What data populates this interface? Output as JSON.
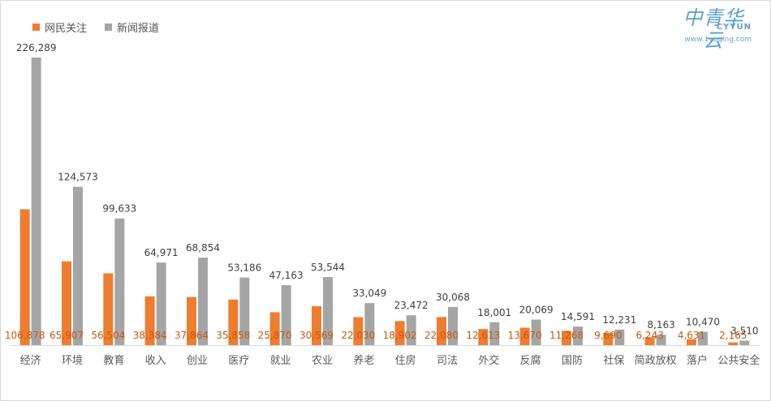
{
  "chart_data": {
    "type": "bar",
    "categories": [
      "经济",
      "环境",
      "教育",
      "收入",
      "创业",
      "医疗",
      "就业",
      "农业",
      "养老",
      "住房",
      "司法",
      "外交",
      "反腐",
      "国防",
      "社保",
      "简政放权",
      "落户",
      "公共安全"
    ],
    "series": [
      {
        "name": "网民关注",
        "color": "#ed7d31",
        "values": [
          106878,
          65907,
          56504,
          38384,
          37864,
          35858,
          25870,
          30569,
          22030,
          18902,
          22080,
          12613,
          13670,
          11268,
          9690,
          6243,
          4631,
          2165
        ]
      },
      {
        "name": "新闻报道",
        "color": "#a5a5a5",
        "values": [
          226289,
          124573,
          99633,
          64971,
          68854,
          53186,
          47163,
          53544,
          33049,
          23472,
          30068,
          18001,
          20069,
          14591,
          12231,
          8163,
          10470,
          3510
        ]
      }
    ],
    "value_labels_primary": [
      "106,878",
      "65,907",
      "56,504",
      "38,384",
      "37,864",
      "35,858",
      "25,870",
      "30,569",
      "22,030",
      "18,902",
      "22,080",
      "12,613",
      "13,670",
      "11,268",
      "9,690",
      "6,243",
      "4,631",
      "2,165"
    ],
    "value_labels_secondary": [
      "226,289",
      "124,573",
      "99,633",
      "64,971",
      "68,854",
      "53,186",
      "47,163",
      "53,544",
      "33,049",
      "23,472",
      "30,068",
      "18,001",
      "20,069",
      "14,591",
      "12,231",
      "8,163",
      "10,470",
      "3,510"
    ],
    "title": "",
    "xlabel": "",
    "ylabel": "",
    "ylim": [
      0,
      226289
    ],
    "grid": false,
    "legend_position": "top-left"
  },
  "legend": {
    "series1": "网民关注",
    "series2": "新闻报道"
  },
  "logo": {
    "main": "中青华云",
    "en": "CYYUN",
    "url": "www.1yuqing.com"
  },
  "colors": {
    "orange": "#ed7d31",
    "gray": "#a5a5a5",
    "label_orange": "#c65911",
    "label_dark": "#404040",
    "axis": "#d9d9d9",
    "logo": "#5aa0d0"
  }
}
